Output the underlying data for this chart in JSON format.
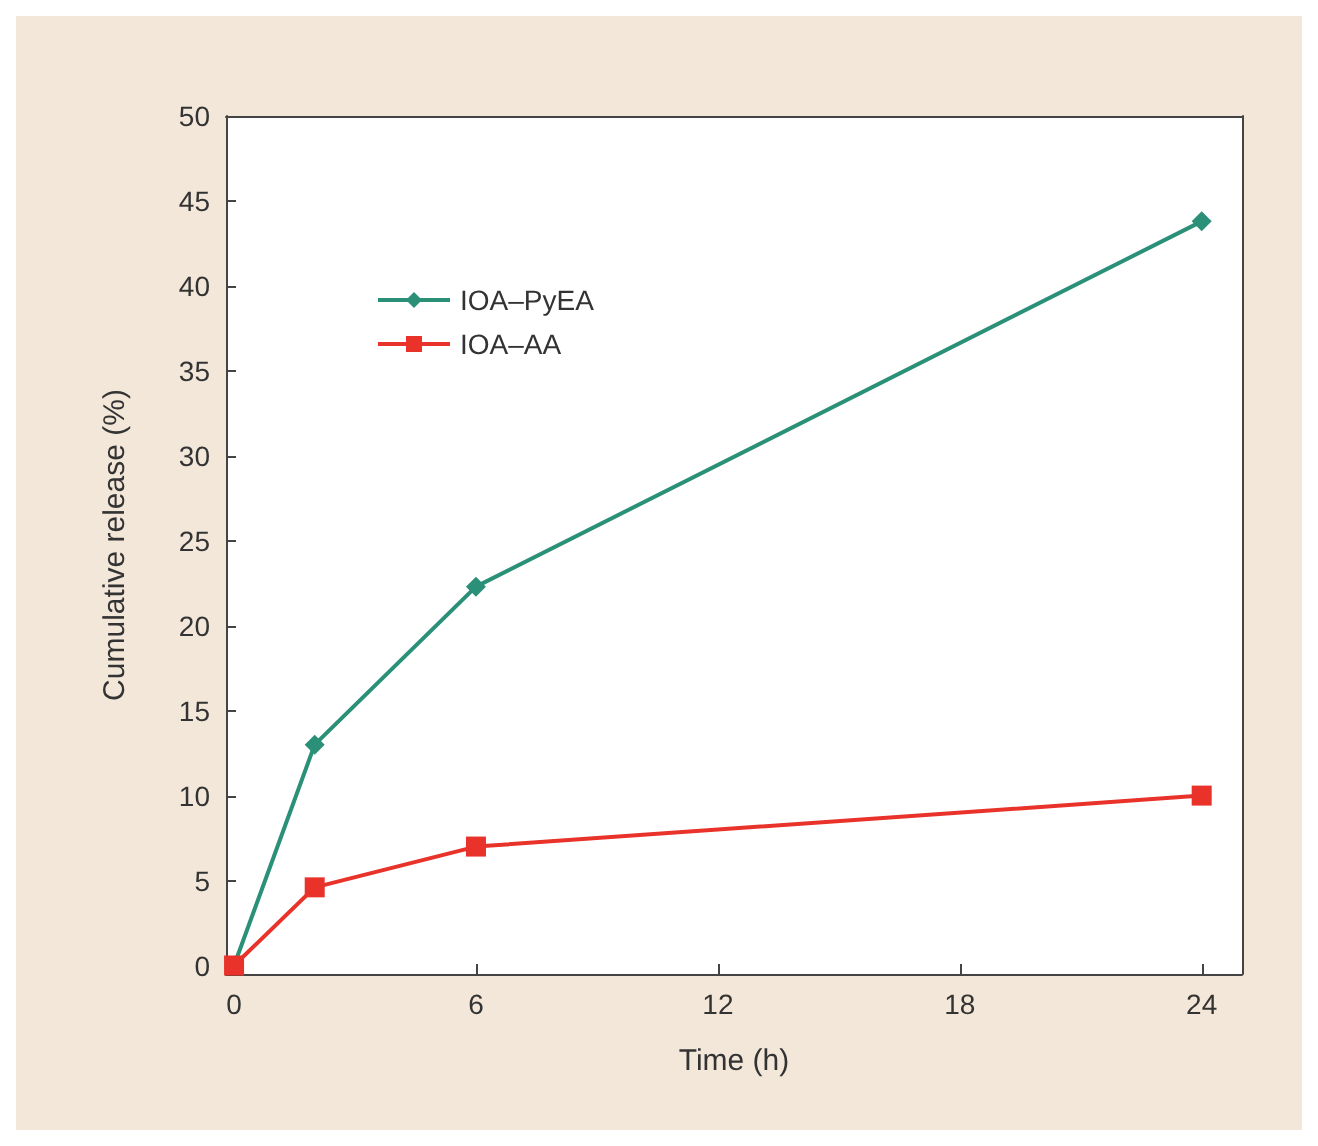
{
  "chart_data": {
    "type": "line",
    "xlabel": "Time (h)",
    "ylabel": "Cumulative release (%)",
    "xlim": [
      -0.2,
      25
    ],
    "xticks": [
      0,
      6,
      12,
      18,
      24
    ],
    "ylim": [
      -0.5,
      50
    ],
    "yticks": [
      0,
      5,
      10,
      15,
      20,
      25,
      30,
      35,
      40,
      45,
      50
    ],
    "grid": false,
    "legend": "top left",
    "line_style": "solid",
    "series": [
      {
        "name": "IOA–PyEA",
        "color": "#2a9077",
        "marker": "diamond",
        "x": [
          0,
          2,
          6,
          24
        ],
        "values": [
          0,
          13,
          22.3,
          43.8
        ]
      },
      {
        "name": "IOA–AA",
        "color": "#e8322a",
        "marker": "square",
        "x": [
          0,
          2,
          6,
          24
        ],
        "values": [
          0,
          4.6,
          7,
          10
        ]
      }
    ]
  }
}
